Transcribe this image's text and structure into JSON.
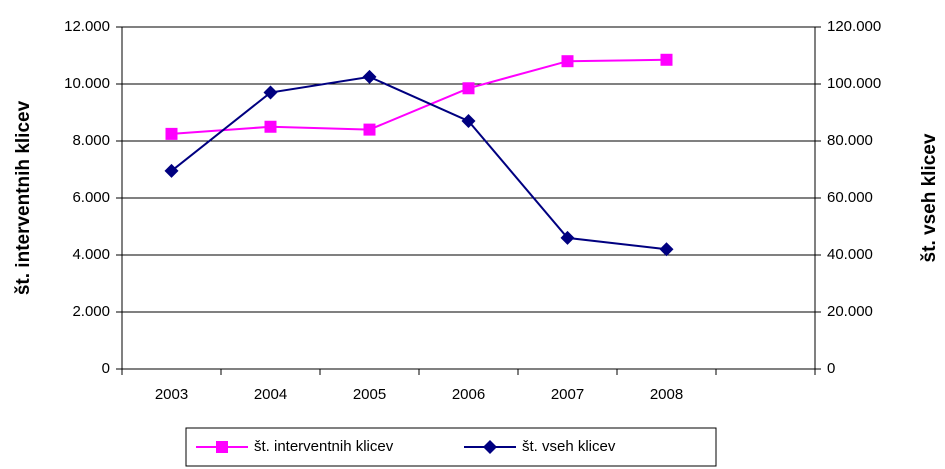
{
  "chart_data": {
    "type": "line",
    "categories": [
      "2003",
      "2004",
      "2005",
      "2006",
      "2007",
      "2008",
      null
    ],
    "series": [
      {
        "name": "št. interventnih klicev",
        "color": "#ff00ff",
        "marker": "square",
        "values": [
          8250,
          8500,
          8400,
          9850,
          10800,
          10850,
          null
        ]
      },
      {
        "name": "št. vseh klicev",
        "color": "#000080",
        "marker": "diamond",
        "axis": "y2",
        "values": [
          69500,
          97000,
          102500,
          87000,
          46000,
          42000,
          null
        ]
      }
    ],
    "ylabel": "št. interventnih klicev",
    "y2label": "št. vseh klicev",
    "ylim": [
      0,
      12000
    ],
    "yticks": [
      0,
      {
        "value": 2000,
        "label": "2.000"
      },
      {
        "value": 4000,
        "label": "4.000"
      },
      {
        "value": 6000,
        "label": "6.000"
      },
      {
        "value": 8000,
        "label": "8.000"
      },
      {
        "value": 10000,
        "label": "10.000"
      },
      {
        "value": 12000,
        "label": "12.000"
      }
    ],
    "y2lim": [
      0,
      120000
    ],
    "y2ticks": [
      0,
      {
        "value": 20000,
        "label": "20.000"
      },
      {
        "value": 40000,
        "label": "40.000"
      },
      {
        "value": 60000,
        "label": "60.000"
      },
      {
        "value": 80000,
        "label": "80.000"
      },
      {
        "value": 100000,
        "label": "100.000"
      },
      {
        "value": 120000,
        "label": "120.000"
      }
    ],
    "grid": true,
    "legend": "bottom"
  }
}
